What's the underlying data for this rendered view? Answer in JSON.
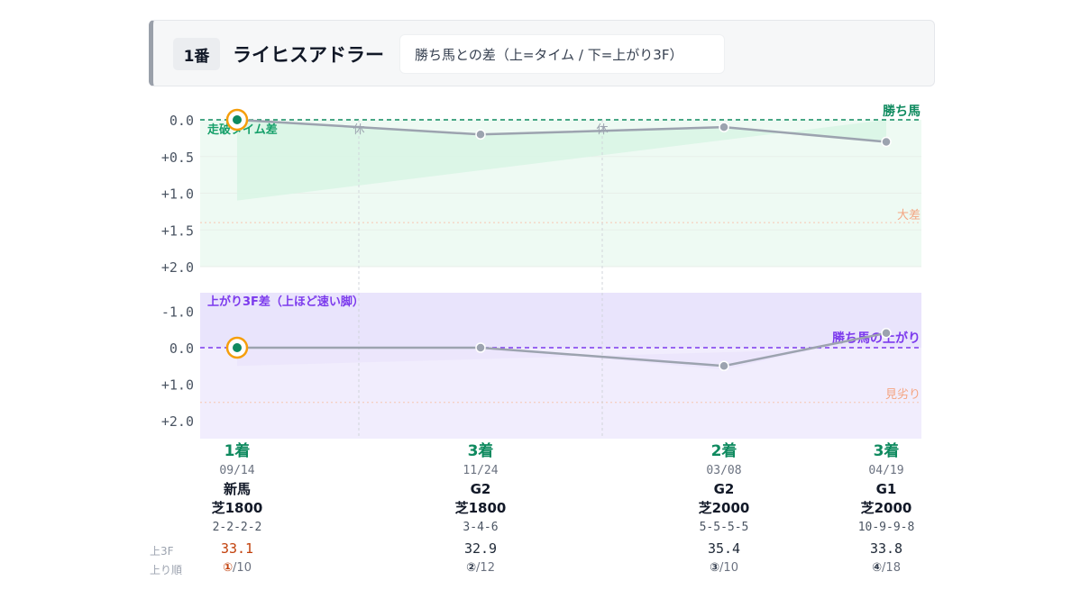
{
  "header": {
    "number": "1番",
    "horse_name": "ライヒスアドラー",
    "legend": "勝ち馬との差（上=タイム / 下=上がり3F）"
  },
  "labels": {
    "time_section": "走破タイム差",
    "last3f_section": "上がり3F差（上ほど速い脚）",
    "winner_line": "勝ち馬",
    "winner_last3f_line": "勝ち馬の上がり",
    "big_gap": "大差",
    "weak_last3f": "見劣り",
    "rest": "休",
    "row_last3f": "上3F",
    "row_rank": "上り順"
  },
  "colors": {
    "time_fill": "#d9f5e6",
    "time_zone": "#eefaf3",
    "last3f_fill": "#e6e0fb",
    "last3f_zone": "#f1edfd",
    "winner_green": "#0f8a5f",
    "winner_purple": "#7c3aed",
    "line_gray": "#9ca3af",
    "highlight": "#f59e0b",
    "warn": "#f4a582"
  },
  "chart_data": [
    {
      "type": "line",
      "title": "走破タイム差",
      "x": [
        "09/14",
        "11/24",
        "03/08",
        "04/19"
      ],
      "series": [
        {
          "values": [
            0.0,
            0.2,
            0.1,
            0.3
          ]
        }
      ],
      "ylim": [
        0.0,
        2.0
      ],
      "y_ticks": [
        "0.0",
        "+0.5",
        "+1.0",
        "+1.5",
        "+2.0"
      ],
      "reference_lines": [
        {
          "label": "勝ち馬",
          "value": 0.0
        },
        {
          "label": "大差",
          "value": 1.4
        }
      ],
      "rest_between": [
        [
          0,
          1
        ],
        [
          1,
          2
        ]
      ],
      "highlight_index": 0
    },
    {
      "type": "line",
      "title": "上がり3F差（上ほど速い脚）",
      "x": [
        "09/14",
        "11/24",
        "03/08",
        "04/19"
      ],
      "series": [
        {
          "values": [
            0.0,
            0.0,
            0.5,
            -0.4
          ]
        }
      ],
      "ylim": [
        -1.5,
        2.5
      ],
      "y_ticks": [
        "-1.0",
        "0.0",
        "+1.0",
        "+2.0"
      ],
      "reference_lines": [
        {
          "label": "勝ち馬の上がり",
          "value": 0.0
        },
        {
          "label": "見劣り",
          "value": 1.5
        }
      ],
      "highlight_index": 0
    }
  ],
  "races": [
    {
      "finish": "1着",
      "date": "09/14",
      "grade": "新馬",
      "course": "芝1800",
      "passing": "2-2-2-2",
      "last3f": "33.1",
      "rank_circle": "①",
      "rank_of": "/10",
      "best": true
    },
    {
      "finish": "3着",
      "date": "11/24",
      "grade": "G2",
      "course": "芝1800",
      "passing": "3-4-6",
      "last3f": "32.9",
      "rank_circle": "②",
      "rank_of": "/12",
      "best": false
    },
    {
      "finish": "2着",
      "date": "03/08",
      "grade": "G2",
      "course": "芝2000",
      "passing": "5-5-5-5",
      "last3f": "35.4",
      "rank_circle": "③",
      "rank_of": "/10",
      "best": false
    },
    {
      "finish": "3着",
      "date": "04/19",
      "grade": "G1",
      "course": "芝2000",
      "passing": "10-9-9-8",
      "last3f": "33.8",
      "rank_circle": "④",
      "rank_of": "/18",
      "best": false
    }
  ]
}
